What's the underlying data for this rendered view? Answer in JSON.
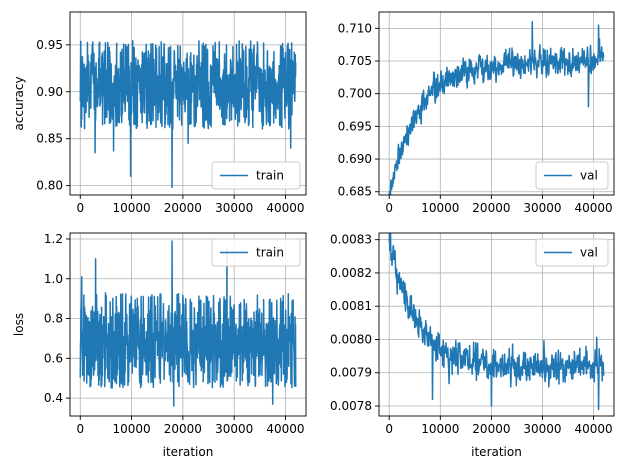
{
  "chart_data": [
    {
      "type": "line",
      "panel": "top-left",
      "ylabel": "accuracy",
      "xlabel": "",
      "xlim": [
        -2000,
        44000
      ],
      "ylim": [
        0.79,
        0.985
      ],
      "xticks": [
        0,
        10000,
        20000,
        30000,
        40000
      ],
      "xtick_labels": [
        "0",
        "10000",
        "20000",
        "30000",
        "40000"
      ],
      "yticks": [
        0.8,
        0.85,
        0.9,
        0.95
      ],
      "ytick_labels": [
        "0.80",
        "0.85",
        "0.90",
        "0.95"
      ],
      "grid": true,
      "legend": "lower right",
      "series": [
        {
          "name": "train",
          "color": "#1f77b4",
          "x_range": [
            0,
            42000
          ],
          "points": 900,
          "band": [
            0.86,
            0.955
          ],
          "center": 0.907,
          "noise_sd": 0.026,
          "outliers": [
            [
              9800,
              0.81
            ],
            [
              17900,
              0.798
            ],
            [
              2900,
              0.835
            ],
            [
              6500,
              0.837
            ],
            [
              21000,
              0.845
            ],
            [
              41000,
              0.84
            ]
          ]
        }
      ]
    },
    {
      "type": "line",
      "panel": "top-right",
      "ylabel": "",
      "xlabel": "",
      "xlim": [
        -2000,
        44000
      ],
      "ylim": [
        0.6845,
        0.7125
      ],
      "xticks": [
        0,
        10000,
        20000,
        30000,
        40000
      ],
      "xtick_labels": [
        "0",
        "10000",
        "20000",
        "30000",
        "40000"
      ],
      "yticks": [
        0.685,
        0.69,
        0.695,
        0.7,
        0.705,
        0.71
      ],
      "ytick_labels": [
        "0.685",
        "0.690",
        "0.695",
        "0.700",
        "0.705",
        "0.710"
      ],
      "grid": true,
      "legend": "lower right",
      "series": [
        {
          "name": "val",
          "color": "#1f77b4",
          "x_range": [
            0,
            42000
          ],
          "points": 700,
          "start": 0.685,
          "plateau": 0.705,
          "rise_tau": 6000,
          "noise_sd": 0.0015,
          "outliers": [
            [
              200,
              0.685
            ],
            [
              28000,
              0.711
            ],
            [
              41000,
              0.7105
            ],
            [
              39000,
              0.698
            ]
          ]
        }
      ]
    },
    {
      "type": "line",
      "panel": "bottom-left",
      "ylabel": "loss",
      "xlabel": "iteration",
      "xlim": [
        -2000,
        44000
      ],
      "ylim": [
        0.31,
        1.23
      ],
      "xticks": [
        0,
        10000,
        20000,
        30000,
        40000
      ],
      "xtick_labels": [
        "0",
        "10000",
        "20000",
        "30000",
        "40000"
      ],
      "yticks": [
        0.4,
        0.6,
        0.8,
        1.0,
        1.2
      ],
      "ytick_labels": [
        "0.4",
        "0.6",
        "0.8",
        "1.0",
        "1.2"
      ],
      "grid": true,
      "legend": "upper right",
      "series": [
        {
          "name": "train",
          "color": "#1f77b4",
          "x_range": [
            0,
            42000
          ],
          "points": 900,
          "band": [
            0.45,
            0.93
          ],
          "center": 0.68,
          "noise_sd": 0.13,
          "outliers": [
            [
              300,
              1.01
            ],
            [
              3000,
              1.1
            ],
            [
              17900,
              1.19
            ],
            [
              28600,
              1.15
            ],
            [
              18200,
              0.36
            ],
            [
              37500,
              0.37
            ]
          ]
        }
      ]
    },
    {
      "type": "line",
      "panel": "bottom-right",
      "ylabel": "",
      "xlabel": "iteration",
      "xlim": [
        -2000,
        44000
      ],
      "ylim": [
        0.00777,
        0.00832
      ],
      "xticks": [
        0,
        10000,
        20000,
        30000,
        40000
      ],
      "xtick_labels": [
        "0",
        "10000",
        "20000",
        "30000",
        "40000"
      ],
      "yticks": [
        0.0078,
        0.0079,
        0.008,
        0.0081,
        0.0082,
        0.0083
      ],
      "ytick_labels": [
        "0.0078",
        "0.0079",
        "0.0080",
        "0.0081",
        "0.0082",
        "0.0083"
      ],
      "grid": true,
      "legend": "upper right",
      "series": [
        {
          "name": "val",
          "color": "#1f77b4",
          "x_range": [
            0,
            42000
          ],
          "points": 700,
          "start": 0.0083,
          "plateau": 0.00792,
          "rise_tau": 5000,
          "noise_sd": 3.5e-05,
          "outliers": [
            [
              200,
              0.0083
            ],
            [
              20000,
              0.0078
            ],
            [
              41000,
              0.00779
            ],
            [
              8500,
              0.00782
            ]
          ]
        }
      ]
    }
  ]
}
